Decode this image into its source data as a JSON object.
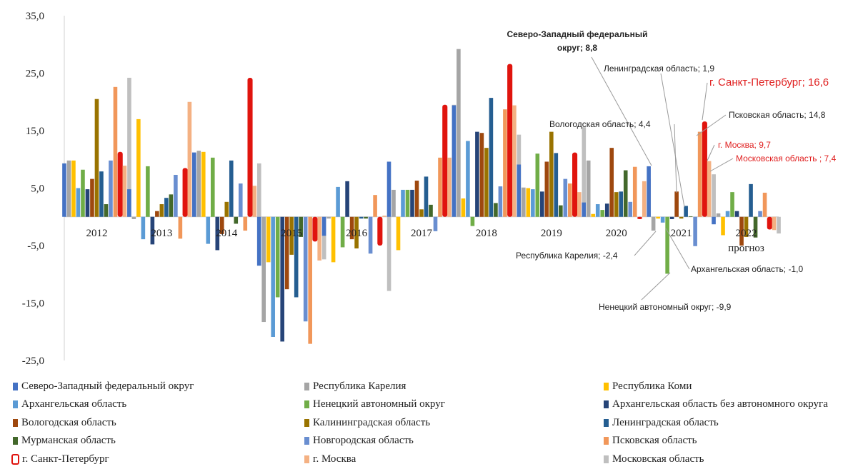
{
  "chart_data": {
    "type": "bar",
    "title": "",
    "xlabel": "",
    "ylabel": "",
    "ylim": [
      -25,
      35
    ],
    "y_ticks": [
      "-25,0",
      "-15,0",
      "-5,0",
      "5,0",
      "15,0",
      "25,0",
      "35,0"
    ],
    "y_tick_values": [
      -25,
      -15,
      -5,
      5,
      15,
      25,
      35
    ],
    "grid": false,
    "legend_position": "bottom",
    "categories": [
      "2012",
      "2013",
      "2014",
      "2015",
      "2016",
      "2017",
      "2018",
      "2019",
      "2020",
      "2021",
      "2022 прогноз"
    ],
    "category_labels": [
      [
        "2012"
      ],
      [
        "2013"
      ],
      [
        "2014"
      ],
      [
        "2015"
      ],
      [
        "2016"
      ],
      [
        "2017"
      ],
      [
        "2018"
      ],
      [
        "2019"
      ],
      [
        "2020"
      ],
      [
        "2021"
      ],
      [
        "2022",
        "прогноз"
      ]
    ],
    "series": [
      {
        "name": "Северо-Западный  федеральный округ",
        "color": "#4472c4",
        "values": [
          9.3,
          4.8,
          11.2,
          -8.5,
          -3.3,
          9.6,
          19.4,
          9.1,
          2.5,
          8.8,
          -1.3
        ]
      },
      {
        "name": "Республика Карелия",
        "color": "#a5a5a5",
        "values": [
          9.8,
          -0.4,
          11.5,
          -18.3,
          -0.3,
          4.7,
          29.2,
          5.1,
          9.8,
          -2.4,
          0.6
        ]
      },
      {
        "name": "Республика Коми",
        "color": "#ffc000",
        "values": [
          9.8,
          17.0,
          11.3,
          -7.9,
          -7.9,
          -5.8,
          3.2,
          5.0,
          0.5,
          -0.3,
          -3.2
        ]
      },
      {
        "name": "Архангельская область",
        "color": "#5b9bd5",
        "values": [
          5.0,
          -3.9,
          -4.7,
          -20.9,
          5.2,
          4.7,
          13.2,
          4.8,
          2.2,
          -1.0,
          1.0
        ]
      },
      {
        "name": "Ненецкий  автономный  округ",
        "color": "#70ad47",
        "values": [
          8.2,
          8.8,
          10.3,
          -14.0,
          -5.3,
          4.7,
          -1.6,
          11.0,
          1.2,
          -9.9,
          4.3
        ]
      },
      {
        "name": "Архангельская  область без автономного округа",
        "color": "#264478",
        "values": [
          4.8,
          -4.8,
          -5.8,
          -21.7,
          6.2,
          4.7,
          14.8,
          4.4,
          2.3,
          -0.4,
          1.0
        ]
      },
      {
        "name": "Вологодская  область",
        "color": "#9e480e",
        "values": [
          6.6,
          1.0,
          -3.0,
          -12.6,
          -3.9,
          6.3,
          14.6,
          9.6,
          12.0,
          4.4,
          -5.0
        ]
      },
      {
        "name": "Калининградская  область",
        "color": "#997300",
        "values": [
          20.5,
          2.2,
          2.6,
          -6.6,
          -5.5,
          1.3,
          12.0,
          14.8,
          4.3,
          -0.3,
          -3.5
        ]
      },
      {
        "name": "Ленинградская  область",
        "color": "#255e91",
        "values": [
          7.9,
          3.3,
          9.8,
          -14.0,
          -0.3,
          7.0,
          20.7,
          11.1,
          4.4,
          1.9,
          5.7
        ]
      },
      {
        "name": "Мурманская  область",
        "color": "#43682b",
        "values": [
          2.2,
          3.9,
          -1.2,
          -3.5,
          -0.3,
          2.1,
          2.4,
          2.0,
          8.1,
          0.1,
          -3.6
        ]
      },
      {
        "name": "Новгородская  область",
        "color": "#698ed0",
        "values": [
          9.8,
          7.3,
          5.8,
          -18.2,
          -6.4,
          -2.5,
          5.3,
          6.6,
          2.6,
          -5.1,
          1.0
        ]
      },
      {
        "name": "Псковская  область",
        "color": "#f1975a",
        "values": [
          22.6,
          -3.8,
          -2.4,
          -22.1,
          3.8,
          10.3,
          18.7,
          5.8,
          8.7,
          14.8,
          4.2
        ]
      },
      {
        "name": "г. Санкт-Петербург",
        "color": "#e0140e",
        "values": [
          11.3,
          8.5,
          24.2,
          -4.3,
          -5.0,
          19.5,
          26.6,
          11.2,
          -0.4,
          16.6,
          -2.2
        ]
      },
      {
        "name": "г. Москва",
        "color": "#f4b183",
        "values": [
          8.9,
          20.0,
          5.4,
          -7.6,
          0.2,
          10.3,
          19.4,
          4.3,
          6.2,
          9.7,
          -2.3
        ]
      },
      {
        "name": "Московская область",
        "color": "#bfbfbf",
        "values": [
          24.2,
          8.4,
          9.3,
          -7.4,
          -12.9,
          19.5,
          14.3,
          15.6,
          6.6,
          7.4,
          -2.9
        ]
      }
    ],
    "annotations": [
      {
        "text_lines": [
          "Северо-Западный  федеральный",
          "округ;  8,8"
        ],
        "style": "bold"
      },
      {
        "text_lines": [
          "Ленинградская область; 1,9"
        ],
        "style": "normal"
      },
      {
        "text_lines": [
          "г. Санкт-Петербург;  16,6"
        ],
        "style": "big-red"
      },
      {
        "text_lines": [
          "Вологодская область; 4,4"
        ],
        "style": "normal"
      },
      {
        "text_lines": [
          "Псковская область; 14,8"
        ],
        "style": "normal"
      },
      {
        "text_lines": [
          "г. Москва; 9,7"
        ],
        "style": "red"
      },
      {
        "text_lines": [
          "Московская область ; 7,4"
        ],
        "style": "red"
      },
      {
        "text_lines": [
          "Республика Карелия; -2,4"
        ],
        "style": "normal"
      },
      {
        "text_lines": [
          "Архангельская область; -1,0"
        ],
        "style": "normal"
      },
      {
        "text_lines": [
          "Ненецкий  автономный  округ;  -9,9"
        ],
        "style": "normal"
      }
    ]
  }
}
